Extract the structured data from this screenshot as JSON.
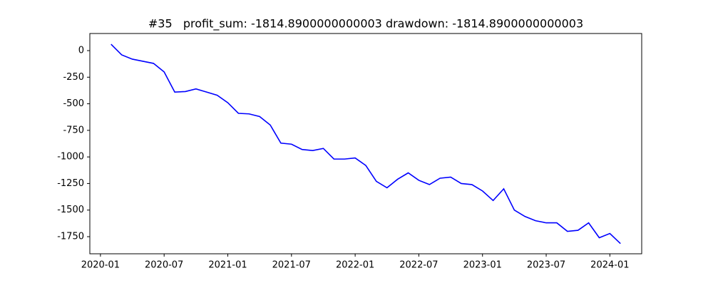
{
  "chart_data": {
    "type": "line",
    "title": "#35   profit_sum: -1814.8900000000003 drawdown: -1814.8900000000003",
    "x": [
      "2020-02",
      "2020-03",
      "2020-04",
      "2020-05",
      "2020-06",
      "2020-07",
      "2020-08",
      "2020-09",
      "2020-10",
      "2020-11",
      "2020-12",
      "2021-01",
      "2021-02",
      "2021-03",
      "2021-04",
      "2021-05",
      "2021-06",
      "2021-07",
      "2021-08",
      "2021-09",
      "2021-10",
      "2021-11",
      "2021-12",
      "2022-01",
      "2022-02",
      "2022-03",
      "2022-04",
      "2022-05",
      "2022-06",
      "2022-07",
      "2022-08",
      "2022-09",
      "2022-10",
      "2022-11",
      "2022-12",
      "2023-01",
      "2023-02",
      "2023-03",
      "2023-04",
      "2023-05",
      "2023-06",
      "2023-07",
      "2023-08",
      "2023-09",
      "2023-10",
      "2023-11",
      "2023-12",
      "2024-01",
      "2024-02"
    ],
    "series": [
      {
        "color": "#0000ff",
        "values": [
          60,
          -40,
          -80,
          -100,
          -120,
          -200,
          -390,
          -385,
          -360,
          -390,
          -420,
          -490,
          -590,
          -595,
          -620,
          -700,
          -870,
          -880,
          -930,
          -940,
          -920,
          -1020,
          -1020,
          -1010,
          -1080,
          -1230,
          -1290,
          -1210,
          -1150,
          -1220,
          -1260,
          -1200,
          -1190,
          -1250,
          -1260,
          -1320,
          -1410,
          -1300,
          -1500,
          -1560,
          -1600,
          -1620,
          -1620,
          -1700,
          -1690,
          -1620,
          -1760,
          -1720,
          -1815
        ]
      }
    ],
    "xlim": [
      "2019-12",
      "2024-04"
    ],
    "xticks": [
      "2020-01",
      "2020-07",
      "2021-01",
      "2021-07",
      "2022-01",
      "2022-07",
      "2023-01",
      "2023-07",
      "2024-01"
    ],
    "ylim": [
      -1911,
      161
    ],
    "yticks": [
      0,
      -250,
      -500,
      -750,
      -1000,
      -1250,
      -1500,
      -1750
    ]
  }
}
